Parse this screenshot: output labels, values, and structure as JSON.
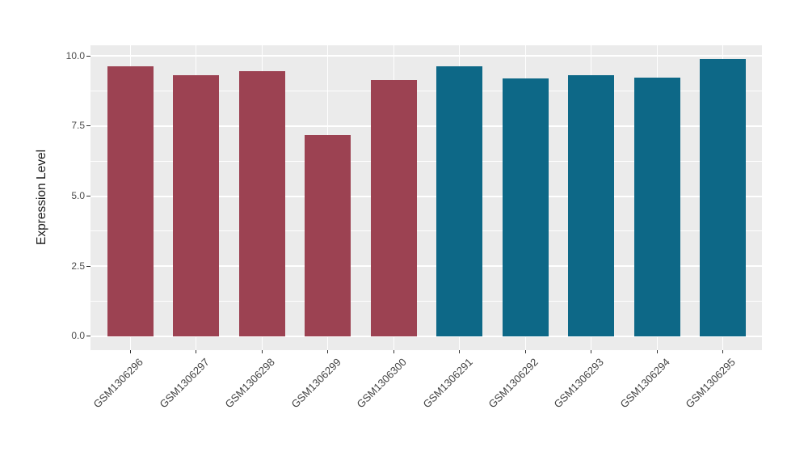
{
  "chart_data": {
    "type": "bar",
    "title": "",
    "xlabel": "",
    "ylabel": "Expression Level",
    "categories": [
      "GSM1306296",
      "GSM1306297",
      "GSM1306298",
      "GSM1306299",
      "GSM1306300",
      "GSM1306291",
      "GSM1306292",
      "GSM1306293",
      "GSM1306294",
      "GSM1306295"
    ],
    "values": [
      9.62,
      9.31,
      9.45,
      7.18,
      9.15,
      9.62,
      9.2,
      9.32,
      9.24,
      9.88
    ],
    "bar_colors": [
      "#9C4252",
      "#9C4252",
      "#9C4252",
      "#9C4252",
      "#9C4252",
      "#0D6887",
      "#0D6887",
      "#0D6887",
      "#0D6887",
      "#0D6887"
    ],
    "group_colors": {
      "left_group": "#9C4252",
      "right_group": "#0D6887"
    },
    "ylim": [
      0,
      10.4
    ],
    "y_ticks": [
      0.0,
      2.5,
      5.0,
      7.5,
      10.0
    ],
    "y_tick_labels": [
      "0.0",
      "2.5",
      "5.0",
      "7.5",
      "10.0"
    ],
    "y_minor_ticks": [
      1.25,
      3.75,
      6.25,
      8.75
    ],
    "grid": true,
    "legend": "none",
    "panel_background": "#EBEBEB",
    "figure_background": "#FFFFFF",
    "grid_color": "#FFFFFF",
    "tick_color": "#333333",
    "axis_text_color": "#4D4D4D"
  }
}
